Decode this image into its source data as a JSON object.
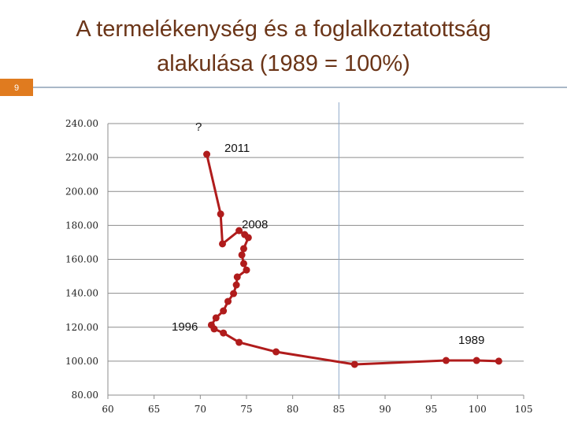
{
  "slide_number": "9",
  "chart_data": {
    "type": "line",
    "title": [
      "A termelékenység és a foglalkoztatottság",
      "alakulása (1989 = 100%)"
    ],
    "x": [
      102.3,
      99.9,
      96.6,
      86.7,
      78.2,
      74.2,
      72.5,
      71.5,
      71.2,
      71.7,
      72.5,
      73.0,
      73.6,
      73.9,
      74.0,
      75.0,
      74.7,
      74.5,
      74.7,
      75.2,
      74.8,
      74.2,
      72.4,
      72.2,
      70.7
    ],
    "values": [
      100,
      100.4,
      100.4,
      98.1,
      105.5,
      111.1,
      116.6,
      119.0,
      121.3,
      125.5,
      129.6,
      135.2,
      139.8,
      144.9,
      149.6,
      153.7,
      157.5,
      162.6,
      166.3,
      172.8,
      174.6,
      176.9,
      169.1,
      186.7,
      221.9
    ],
    "color": "#b01c1c",
    "xlim": [
      60,
      105
    ],
    "xticks": [
      60,
      65,
      70,
      75,
      80,
      85,
      90,
      95,
      100,
      105
    ],
    "ylim": [
      80,
      240
    ],
    "yticks": [
      {
        "value": 80,
        "label": "80.00"
      },
      {
        "value": 100,
        "label": "100.00"
      },
      {
        "value": 120,
        "label": "120.00"
      },
      {
        "value": 140,
        "label": "140.00"
      },
      {
        "value": 160,
        "label": "160.00"
      },
      {
        "value": 180,
        "label": "180.00"
      },
      {
        "value": 200,
        "label": "200.00"
      },
      {
        "value": 220,
        "label": "220.00"
      },
      {
        "value": 240,
        "label": "240.00"
      }
    ],
    "grid": true,
    "vline": 85,
    "annotations": [
      "?",
      "2011",
      "2008",
      "1996",
      "1989"
    ]
  }
}
